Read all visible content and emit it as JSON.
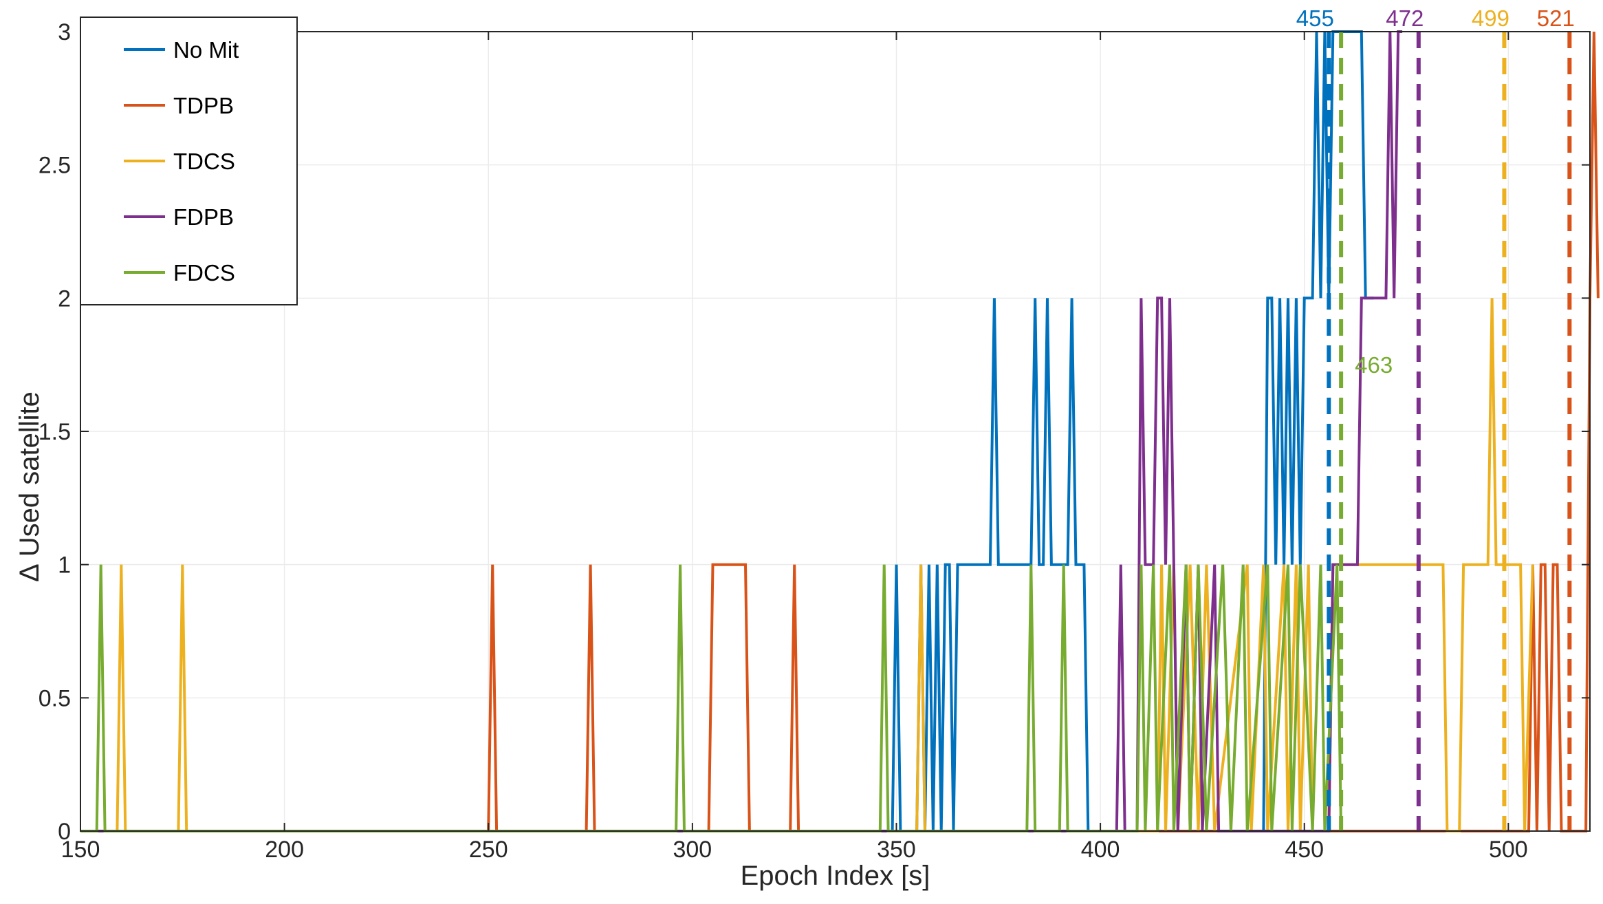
{
  "colors": {
    "No Mit": "#0072BD",
    "TDPB": "#D95319",
    "TDCS": "#EDB120",
    "FDPB": "#7E2F8E",
    "FDCS": "#77AC30",
    "grid": "#ebebeb",
    "axis": "#262626"
  },
  "chart_data": {
    "type": "line",
    "xlabel": "Epoch Index [s]",
    "ylabel": "∆ Used satellite",
    "xlim": [
      150,
      520
    ],
    "ylim": [
      0,
      3
    ],
    "xticks": [
      "150",
      "200",
      "250",
      "300",
      "350",
      "400",
      "450",
      "500"
    ],
    "yticks": [
      "0",
      "0.5",
      "1",
      "1.5",
      "2",
      "2.5",
      "3"
    ],
    "grid": true,
    "legend_position": "top-left",
    "legend": [
      "No Mit",
      "TDPB",
      "TDCS",
      "FDPB",
      "FDCS"
    ],
    "series": [
      {
        "name": "No Mit",
        "points": [
          [
            150,
            0
          ],
          [
            349,
            0
          ],
          [
            350,
            1
          ],
          [
            351,
            0
          ],
          [
            355,
            0
          ],
          [
            356,
            1
          ],
          [
            357,
            0
          ],
          [
            358,
            1
          ],
          [
            359,
            0
          ],
          [
            360,
            1
          ],
          [
            361,
            0
          ],
          [
            362,
            1
          ],
          [
            363,
            1
          ],
          [
            364,
            0
          ],
          [
            365,
            1
          ],
          [
            373,
            1
          ],
          [
            374,
            2
          ],
          [
            375,
            1
          ],
          [
            383,
            1
          ],
          [
            384,
            2
          ],
          [
            385,
            1
          ],
          [
            386,
            1
          ],
          [
            387,
            2
          ],
          [
            388,
            1
          ],
          [
            392,
            1
          ],
          [
            393,
            2
          ],
          [
            394,
            1
          ],
          [
            396,
            1
          ],
          [
            397,
            0
          ],
          [
            440,
            0
          ],
          [
            441,
            2
          ],
          [
            442,
            2
          ],
          [
            443,
            1
          ],
          [
            444,
            2
          ],
          [
            445,
            1
          ],
          [
            446,
            2
          ],
          [
            447,
            1
          ],
          [
            448,
            2
          ],
          [
            449,
            1
          ],
          [
            450,
            2
          ],
          [
            452,
            2
          ],
          [
            453,
            3
          ],
          [
            454,
            2
          ],
          [
            455,
            3
          ],
          [
            456,
            2
          ],
          [
            457,
            3
          ],
          [
            464,
            3
          ],
          [
            465,
            2
          ],
          [
            467,
            2
          ]
        ]
      },
      {
        "name": "TDPB",
        "points": [
          [
            150,
            0
          ],
          [
            250,
            0
          ],
          [
            251,
            1
          ],
          [
            252,
            0
          ],
          [
            274,
            0
          ],
          [
            275,
            1
          ],
          [
            276,
            0
          ],
          [
            304,
            0
          ],
          [
            305,
            1
          ],
          [
            313,
            1
          ],
          [
            314,
            0
          ],
          [
            324,
            0
          ],
          [
            325,
            1
          ],
          [
            326,
            0
          ],
          [
            505,
            0
          ],
          [
            506,
            1
          ],
          [
            507,
            0
          ],
          [
            508,
            1
          ],
          [
            509,
            1
          ],
          [
            510,
            0
          ],
          [
            511,
            1
          ],
          [
            512,
            1
          ],
          [
            513,
            0
          ],
          [
            519,
            0
          ],
          [
            520,
            2
          ],
          [
            521,
            3
          ],
          [
            522,
            2
          ]
        ]
      },
      {
        "name": "TDCS",
        "points": [
          [
            150,
            0
          ],
          [
            159,
            0
          ],
          [
            160,
            1
          ],
          [
            161,
            0
          ],
          [
            174,
            0
          ],
          [
            175,
            1
          ],
          [
            176,
            0
          ],
          [
            355,
            0
          ],
          [
            356,
            1
          ],
          [
            357,
            0
          ],
          [
            414,
            0
          ],
          [
            415,
            1
          ],
          [
            416,
            0
          ],
          [
            418,
            1
          ],
          [
            419,
            0
          ],
          [
            422,
            1
          ],
          [
            424,
            0
          ],
          [
            426,
            1
          ],
          [
            428,
            0
          ],
          [
            436,
            1
          ],
          [
            437,
            0
          ],
          [
            440,
            1
          ],
          [
            441,
            0
          ],
          [
            445,
            1
          ],
          [
            446,
            0
          ],
          [
            448,
            1
          ],
          [
            449,
            0
          ],
          [
            451,
            1
          ],
          [
            452,
            0
          ],
          [
            456,
            0
          ],
          [
            457,
            1
          ],
          [
            484,
            1
          ],
          [
            485,
            0
          ],
          [
            488,
            0
          ],
          [
            489,
            1
          ],
          [
            495,
            1
          ],
          [
            496,
            2
          ],
          [
            497,
            1
          ],
          [
            503,
            1
          ],
          [
            504,
            0
          ],
          [
            506,
            1
          ]
        ]
      },
      {
        "name": "FDPB",
        "points": [
          [
            150,
            0
          ],
          [
            404,
            0
          ],
          [
            405,
            1
          ],
          [
            406,
            0
          ],
          [
            409,
            0
          ],
          [
            410,
            2
          ],
          [
            411,
            1
          ],
          [
            413,
            1
          ],
          [
            414,
            2
          ],
          [
            415,
            2
          ],
          [
            416,
            1
          ],
          [
            417,
            2
          ],
          [
            418,
            1
          ],
          [
            419,
            0
          ],
          [
            421,
            1
          ],
          [
            422,
            0
          ],
          [
            424,
            1
          ],
          [
            425,
            0
          ],
          [
            428,
            1
          ],
          [
            429,
            0
          ],
          [
            456,
            0
          ],
          [
            457,
            1
          ],
          [
            463,
            1
          ],
          [
            464,
            2
          ],
          [
            470,
            2
          ],
          [
            471,
            3
          ],
          [
            472,
            2
          ],
          [
            473,
            3
          ],
          [
            474,
            3
          ]
        ]
      },
      {
        "name": "FDCS",
        "points": [
          [
            150,
            0
          ],
          [
            154,
            0
          ],
          [
            155,
            1
          ],
          [
            156,
            0
          ],
          [
            296,
            0
          ],
          [
            297,
            1
          ],
          [
            298,
            0
          ],
          [
            346,
            0
          ],
          [
            347,
            1
          ],
          [
            348,
            0
          ],
          [
            382,
            0
          ],
          [
            383,
            1
          ],
          [
            384,
            0
          ],
          [
            390,
            0
          ],
          [
            391,
            1
          ],
          [
            392,
            0
          ],
          [
            409,
            0
          ],
          [
            410,
            1
          ],
          [
            411,
            0
          ],
          [
            413,
            1
          ],
          [
            414,
            0
          ],
          [
            417,
            1
          ],
          [
            418,
            0
          ],
          [
            421,
            1
          ],
          [
            422,
            0
          ],
          [
            424,
            1
          ],
          [
            426,
            0
          ],
          [
            430,
            1
          ],
          [
            432,
            0
          ],
          [
            435,
            1
          ],
          [
            436,
            0
          ],
          [
            441,
            1
          ],
          [
            442,
            0
          ],
          [
            446,
            1
          ],
          [
            447,
            0
          ],
          [
            449,
            1
          ],
          [
            452,
            0
          ],
          [
            454,
            1
          ],
          [
            455,
            0
          ],
          [
            458,
            1
          ],
          [
            459,
            0
          ]
        ]
      }
    ],
    "vlines": [
      {
        "name": "No Mit",
        "x": 456,
        "label": "455"
      },
      {
        "name": "FDCS",
        "x": 459,
        "label": "463"
      },
      {
        "name": "FDPB",
        "x": 478,
        "label": "472"
      },
      {
        "name": "TDCS",
        "x": 499,
        "label": "499"
      },
      {
        "name": "TDPB",
        "x": 515,
        "label": "521"
      }
    ]
  }
}
